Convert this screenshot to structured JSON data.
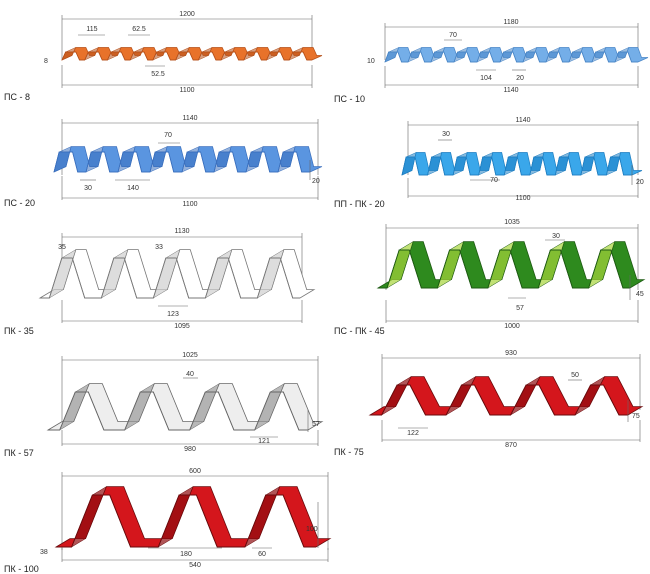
{
  "profiles": [
    {
      "id": "ps8",
      "label": "ПС - 8",
      "color": "#e8722a",
      "dark": "#b5501a",
      "dims": [
        "1200",
        "115",
        "62.5",
        "8",
        "52.5",
        "1100"
      ]
    },
    {
      "id": "ps10",
      "label": "ПС - 10",
      "color": "#74aee8",
      "dark": "#4a86c6",
      "dims": [
        "1180",
        "70",
        "10",
        "104",
        "20",
        "1140"
      ]
    },
    {
      "id": "ps20",
      "label": "ПС - 20",
      "color": "#5a95e0",
      "dark": "#3a6fbd",
      "dims": [
        "1140",
        "70",
        "30",
        "140",
        "20",
        "1100"
      ]
    },
    {
      "id": "pp-pk20",
      "label": "ПП - ПК - 20",
      "color": "#3aa7ea",
      "dark": "#1f7fc2",
      "dims": [
        "1140",
        "30",
        "70",
        "20",
        "1100"
      ]
    },
    {
      "id": "pk35",
      "label": "ПК - 35",
      "color": "#ffffff",
      "dark": "#888888",
      "dims": [
        "1130",
        "35",
        "33",
        "123",
        "1095"
      ]
    },
    {
      "id": "ps-pk45",
      "label": "ПС - ПК - 45",
      "color": "#2e8a1e",
      "dark": "#a6d43a",
      "dims": [
        "1035",
        "30",
        "57",
        "45",
        "1000"
      ]
    },
    {
      "id": "pk57",
      "label": "ПК - 57",
      "color": "#e6e6e6",
      "dark": "#9a9a9a",
      "dims": [
        "1025",
        "40",
        "57",
        "121",
        "980"
      ]
    },
    {
      "id": "pk75",
      "label": "ПК - 75",
      "color": "#d4161c",
      "dark": "#8e0d10",
      "dims": [
        "930",
        "50",
        "75",
        "122",
        "870"
      ]
    },
    {
      "id": "pk100",
      "label": "ПК - 100",
      "color": "#d4161c",
      "dark": "#8e0d10",
      "dims": [
        "600",
        "100",
        "38",
        "180",
        "60",
        "540"
      ]
    }
  ]
}
